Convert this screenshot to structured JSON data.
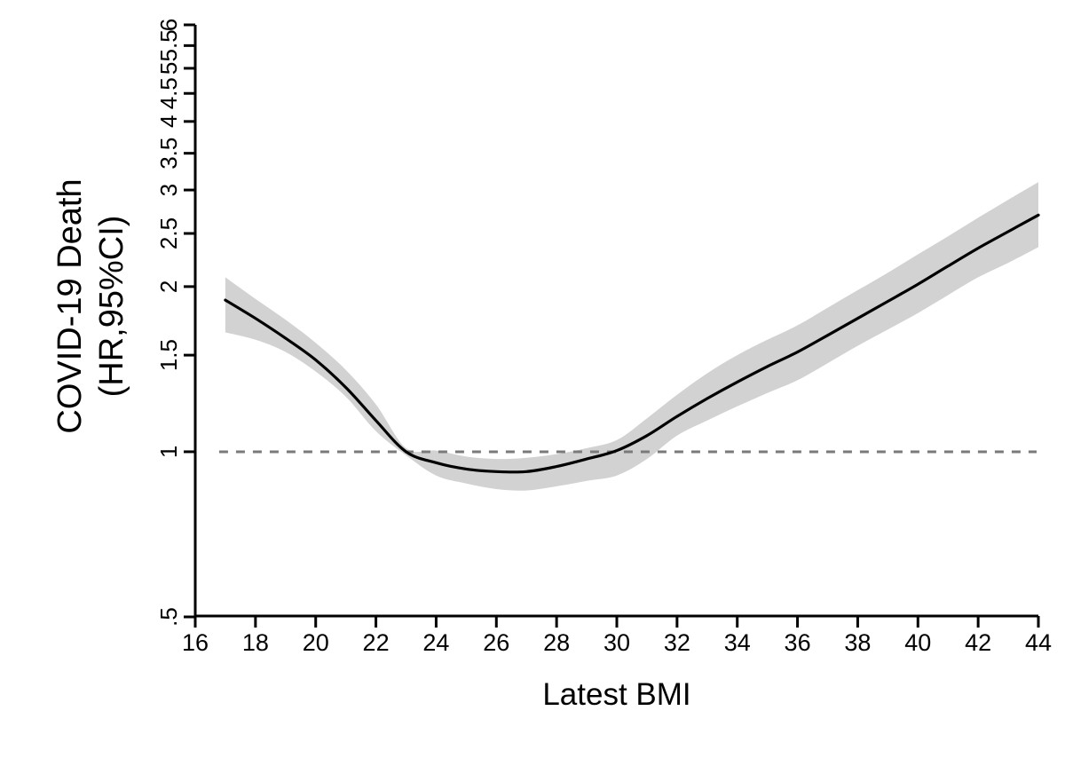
{
  "figure": {
    "background": "#ffffff",
    "x_axis_title": "Latest BMI",
    "y_axis_title_line1": "COVID-19 Death",
    "y_axis_title_line2": "(HR,95%CI)"
  },
  "chart_data": {
    "type": "line",
    "title": "",
    "xlabel": "Latest BMI",
    "ylabel": "COVID-19 Death (HR,95%CI)",
    "y_scale": "log",
    "xlim": [
      16,
      44
    ],
    "ylim": [
      0.5,
      6
    ],
    "grid": false,
    "legend": false,
    "x_ticks": [
      16,
      18,
      20,
      22,
      24,
      26,
      28,
      30,
      32,
      34,
      36,
      38,
      40,
      42,
      44
    ],
    "y_ticks": [
      0.5,
      1,
      1.5,
      2,
      2.5,
      3,
      3.5,
      4,
      4.5,
      5,
      5.5,
      6
    ],
    "y_tick_labels": [
      ".5",
      "1",
      "1.5",
      "2",
      "2.5",
      "3",
      "3.5",
      "4",
      "4.5",
      "5",
      "5.5",
      "6"
    ],
    "reference_line": {
      "value": 1,
      "style": "dashed",
      "color": "#7a7a7a"
    },
    "x": [
      17,
      18,
      19,
      20,
      21,
      22,
      23,
      24,
      25,
      26,
      27,
      28,
      29,
      30,
      31,
      32,
      33,
      34,
      35,
      36,
      37,
      38,
      39,
      40,
      41,
      42,
      43,
      44
    ],
    "series": [
      {
        "name": "hazard_ratio",
        "color": "#000000",
        "values": [
          1.89,
          1.75,
          1.61,
          1.47,
          1.31,
          1.14,
          1.0,
          0.955,
          0.93,
          0.92,
          0.92,
          0.94,
          0.97,
          1.005,
          1.07,
          1.16,
          1.25,
          1.34,
          1.43,
          1.52,
          1.63,
          1.75,
          1.88,
          2.02,
          2.18,
          2.35,
          2.52,
          2.7
        ]
      },
      {
        "name": "upper_95ci",
        "color": "#d2d2d2",
        "values": [
          2.08,
          1.9,
          1.74,
          1.58,
          1.41,
          1.22,
          1.015,
          1.005,
          0.98,
          0.97,
          0.975,
          0.99,
          1.015,
          1.05,
          1.15,
          1.27,
          1.39,
          1.5,
          1.6,
          1.7,
          1.83,
          1.97,
          2.12,
          2.29,
          2.47,
          2.67,
          2.88,
          3.1
        ]
      },
      {
        "name": "lower_95ci",
        "color": "#d2d2d2",
        "values": [
          1.65,
          1.6,
          1.52,
          1.4,
          1.26,
          1.09,
          0.985,
          0.905,
          0.875,
          0.855,
          0.85,
          0.865,
          0.885,
          0.905,
          0.97,
          1.07,
          1.14,
          1.21,
          1.28,
          1.35,
          1.45,
          1.56,
          1.67,
          1.79,
          1.93,
          2.08,
          2.21,
          2.36
        ]
      }
    ],
    "ci_band_color": "#d2d2d2",
    "axis_color": "#000000"
  }
}
